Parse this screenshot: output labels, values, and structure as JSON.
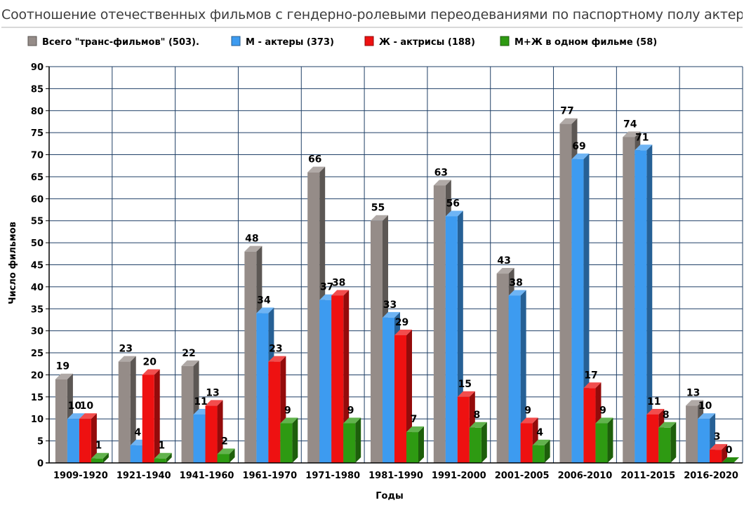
{
  "chart_data": {
    "type": "bar",
    "title": "Соотношение отечественных фильмов с гендерно-ролевыми переодеваниями по паспортному полу актеров.",
    "xlabel": "Годы",
    "ylabel": "Число фильмов",
    "ylim": [
      0,
      90
    ],
    "ytick_step": 5,
    "grid": true,
    "legend_position": "top",
    "categories": [
      "1909-1920",
      "1921-1940",
      "1941-1960",
      "1961-1970",
      "1971-1980",
      "1981-1990",
      "1991-2000",
      "2001-2005",
      "2006-2010",
      "2011-2015",
      "2016-2020"
    ],
    "series": [
      {
        "name": "Всего \"транс-фильмов\" (503).",
        "color": "#958c88",
        "values": [
          19,
          23,
          22,
          48,
          66,
          55,
          63,
          43,
          77,
          74,
          13
        ]
      },
      {
        "name": "М - актеры (373)",
        "color": "#3d9bf0",
        "values": [
          10,
          4,
          11,
          34,
          37,
          33,
          56,
          38,
          69,
          71,
          10
        ]
      },
      {
        "name": "Ж - актрисы (188)",
        "color": "#ee1111",
        "values": [
          10,
          20,
          13,
          23,
          38,
          29,
          15,
          9,
          17,
          11,
          3
        ]
      },
      {
        "name": "М+Ж в одном фильме (58)",
        "color": "#2e9a12",
        "values": [
          1,
          1,
          2,
          9,
          9,
          7,
          8,
          4,
          9,
          8,
          0
        ]
      }
    ]
  }
}
